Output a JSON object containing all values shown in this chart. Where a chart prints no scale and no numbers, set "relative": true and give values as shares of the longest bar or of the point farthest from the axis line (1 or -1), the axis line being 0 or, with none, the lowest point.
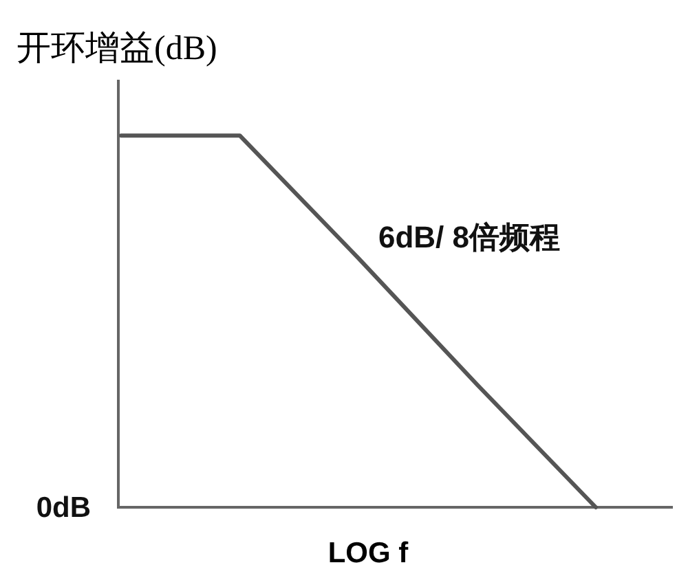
{
  "chart_data": {
    "type": "line",
    "relative": true,
    "ylabel": "开环增益(dB)",
    "xlabel": "LOG f",
    "categories": [
      null,
      null,
      null,
      null,
      null
    ],
    "series": [
      {
        "color": "#555555",
        "values": [
          1,
          1,
          0.67,
          0.33,
          0
        ]
      }
    ],
    "annotations": [
      "0dB",
      "6dB/ 8倍频程"
    ]
  }
}
